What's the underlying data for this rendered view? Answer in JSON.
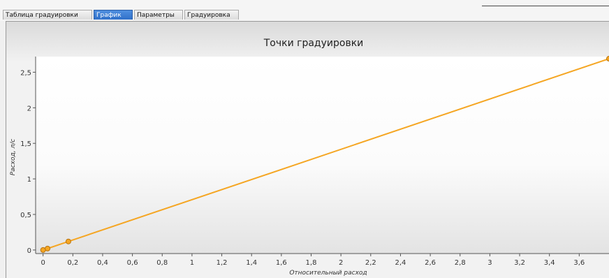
{
  "tabs": [
    {
      "label": "Таблица градуировки",
      "active": false
    },
    {
      "label": "График",
      "active": true
    },
    {
      "label": "Параметры",
      "active": false
    },
    {
      "label": "Градуировка",
      "active": false
    }
  ],
  "colors": {
    "series": "#f5a623",
    "active_tab": "#3a7bd5",
    "plot_gradient_end": "#e3e3e3"
  },
  "chart_data": {
    "type": "line",
    "title": "Точки градуировки",
    "xlabel": "Относительный расход",
    "ylabel": "Расход, л/с",
    "xlim": [
      -0.05,
      3.8
    ],
    "ylim": [
      -0.05,
      2.72
    ],
    "xticks": [
      0,
      0.2,
      0.4,
      0.6,
      0.8,
      1,
      1.2,
      1.4,
      1.6,
      1.8,
      2,
      2.2,
      2.4,
      2.6,
      2.8,
      3,
      3.2,
      3.4,
      3.6
    ],
    "xtick_labels": [
      "0",
      "0,2",
      "0,4",
      "0,6",
      "0,8",
      "1",
      "1,2",
      "1,4",
      "1,6",
      "1,8",
      "2",
      "2,2",
      "2,4",
      "2,6",
      "2,8",
      "3",
      "3,2",
      "3,4",
      "3,6"
    ],
    "yticks": [
      0,
      0.5,
      1,
      1.5,
      2,
      2.5
    ],
    "ytick_labels": [
      "0",
      "0,5",
      "1",
      "1,5",
      "2",
      "2,5"
    ],
    "grid": false,
    "series": [
      {
        "x": [
          0,
          0.03,
          0.17,
          3.8
        ],
        "y": [
          0,
          0.02,
          0.12,
          2.69
        ]
      }
    ]
  }
}
